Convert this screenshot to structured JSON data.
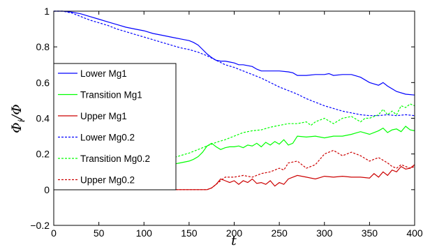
{
  "chart_data": {
    "type": "line",
    "title": "",
    "xlabel": "t",
    "ylabel": "Φ_i/Φ",
    "xlim": [
      0,
      400
    ],
    "ylim": [
      -0.2,
      1
    ],
    "grid": false,
    "legend_position": "center-left",
    "x_ticks": [
      "0",
      "50",
      "100",
      "150",
      "200",
      "250",
      "300",
      "350",
      "400"
    ],
    "y_ticks": [
      "−0.2",
      "0",
      "0.2",
      "0.4",
      "0.6",
      "0.8",
      "1"
    ],
    "series": [
      {
        "name": "Lower Mg1",
        "color": "#0000ff",
        "dash": "solid",
        "x": [
          0,
          10,
          20,
          30,
          40,
          50,
          60,
          70,
          80,
          90,
          100,
          110,
          120,
          130,
          140,
          150,
          155,
          160,
          165,
          170,
          175,
          180,
          185,
          190,
          195,
          200,
          205,
          210,
          220,
          225,
          230,
          240,
          250,
          260,
          265,
          270,
          280,
          290,
          300,
          305,
          310,
          320,
          330,
          340,
          350,
          360,
          365,
          370,
          380,
          390,
          400
        ],
        "y": [
          1.0,
          1.0,
          0.995,
          0.985,
          0.97,
          0.955,
          0.94,
          0.925,
          0.91,
          0.9,
          0.89,
          0.875,
          0.865,
          0.855,
          0.845,
          0.835,
          0.825,
          0.81,
          0.785,
          0.76,
          0.74,
          0.725,
          0.72,
          0.72,
          0.715,
          0.71,
          0.7,
          0.7,
          0.69,
          0.675,
          0.665,
          0.665,
          0.665,
          0.66,
          0.655,
          0.64,
          0.64,
          0.645,
          0.645,
          0.65,
          0.64,
          0.645,
          0.645,
          0.63,
          0.6,
          0.585,
          0.6,
          0.58,
          0.55,
          0.535,
          0.53
        ]
      },
      {
        "name": "Transition Mg1",
        "color": "#00ff00",
        "dash": "solid",
        "x": [
          0,
          10,
          20,
          30,
          40,
          50,
          60,
          70,
          80,
          90,
          100,
          110,
          120,
          130,
          140,
          150,
          155,
          160,
          165,
          170,
          175,
          180,
          185,
          190,
          195,
          200,
          205,
          210,
          215,
          220,
          225,
          230,
          235,
          240,
          245,
          250,
          255,
          260,
          265,
          270,
          280,
          290,
          300,
          310,
          320,
          330,
          340,
          350,
          360,
          365,
          370,
          375,
          380,
          385,
          390,
          395,
          400
        ],
        "y": [
          0.0,
          0.0,
          0.005,
          0.015,
          0.03,
          0.045,
          0.06,
          0.075,
          0.09,
          0.1,
          0.11,
          0.12,
          0.13,
          0.14,
          0.15,
          0.16,
          0.17,
          0.185,
          0.21,
          0.245,
          0.26,
          0.24,
          0.225,
          0.235,
          0.24,
          0.24,
          0.245,
          0.235,
          0.25,
          0.245,
          0.26,
          0.24,
          0.265,
          0.25,
          0.27,
          0.255,
          0.28,
          0.25,
          0.26,
          0.3,
          0.295,
          0.3,
          0.29,
          0.3,
          0.3,
          0.31,
          0.325,
          0.31,
          0.33,
          0.345,
          0.32,
          0.335,
          0.34,
          0.325,
          0.355,
          0.335,
          0.33
        ]
      },
      {
        "name": "Upper Mg1",
        "color": "#cc0000",
        "dash": "solid",
        "x": [
          0,
          50,
          100,
          150,
          170,
          175,
          180,
          185,
          190,
          195,
          200,
          205,
          210,
          215,
          220,
          225,
          230,
          235,
          240,
          245,
          250,
          255,
          260,
          265,
          270,
          280,
          290,
          300,
          310,
          320,
          330,
          340,
          350,
          355,
          360,
          365,
          370,
          375,
          380,
          385,
          390,
          395,
          400
        ],
        "y": [
          0.0,
          0.0,
          0.0,
          0.0,
          0.0,
          0.01,
          0.03,
          0.06,
          0.05,
          0.04,
          0.05,
          0.03,
          0.05,
          0.04,
          0.06,
          0.035,
          0.04,
          0.03,
          0.05,
          0.02,
          0.04,
          0.03,
          0.06,
          0.07,
          0.08,
          0.07,
          0.06,
          0.075,
          0.07,
          0.075,
          0.07,
          0.07,
          0.065,
          0.09,
          0.07,
          0.1,
          0.08,
          0.11,
          0.1,
          0.13,
          0.115,
          0.12,
          0.14
        ]
      },
      {
        "name": "Lower Mg0.2",
        "color": "#0000ff",
        "dash": "dotted",
        "x": [
          0,
          10,
          20,
          30,
          40,
          50,
          60,
          70,
          80,
          90,
          100,
          110,
          120,
          130,
          140,
          150,
          160,
          170,
          180,
          190,
          200,
          210,
          220,
          230,
          240,
          250,
          260,
          270,
          280,
          290,
          300,
          310,
          320,
          330,
          340,
          350,
          360,
          370,
          380,
          390,
          400
        ],
        "y": [
          1.0,
          1.0,
          0.99,
          0.97,
          0.95,
          0.935,
          0.92,
          0.9,
          0.885,
          0.87,
          0.855,
          0.84,
          0.825,
          0.81,
          0.795,
          0.785,
          0.77,
          0.75,
          0.725,
          0.7,
          0.685,
          0.665,
          0.645,
          0.625,
          0.6,
          0.575,
          0.555,
          0.535,
          0.51,
          0.49,
          0.47,
          0.455,
          0.44,
          0.43,
          0.42,
          0.415,
          0.415,
          0.42,
          0.415,
          0.42,
          0.415
        ]
      },
      {
        "name": "Transition Mg0.2",
        "color": "#00ff00",
        "dash": "dotted",
        "x": [
          0,
          10,
          20,
          30,
          40,
          50,
          60,
          70,
          80,
          90,
          100,
          110,
          120,
          130,
          140,
          150,
          160,
          170,
          180,
          190,
          200,
          210,
          220,
          230,
          240,
          250,
          260,
          270,
          280,
          285,
          290,
          300,
          310,
          320,
          330,
          340,
          345,
          350,
          360,
          365,
          370,
          375,
          380,
          385,
          390,
          395,
          400
        ],
        "y": [
          0.0,
          0.0,
          0.01,
          0.025,
          0.04,
          0.055,
          0.07,
          0.085,
          0.1,
          0.115,
          0.13,
          0.145,
          0.16,
          0.175,
          0.19,
          0.205,
          0.225,
          0.245,
          0.265,
          0.28,
          0.3,
          0.32,
          0.33,
          0.335,
          0.35,
          0.36,
          0.37,
          0.37,
          0.38,
          0.36,
          0.38,
          0.4,
          0.37,
          0.4,
          0.41,
          0.38,
          0.4,
          0.4,
          0.42,
          0.45,
          0.42,
          0.44,
          0.42,
          0.47,
          0.46,
          0.48,
          0.47
        ]
      },
      {
        "name": "Upper Mg0.2",
        "color": "#cc0000",
        "dash": "dotted",
        "x": [
          0,
          50,
          100,
          150,
          170,
          175,
          180,
          185,
          190,
          200,
          210,
          220,
          230,
          240,
          245,
          250,
          255,
          260,
          270,
          280,
          290,
          300,
          310,
          320,
          330,
          340,
          350,
          360,
          370,
          375,
          380,
          385,
          390,
          395,
          400
        ],
        "y": [
          0.0,
          0.0,
          0.0,
          0.0,
          0.0,
          0.01,
          0.03,
          0.05,
          0.07,
          0.07,
          0.08,
          0.07,
          0.09,
          0.1,
          0.11,
          0.12,
          0.11,
          0.15,
          0.16,
          0.12,
          0.14,
          0.2,
          0.22,
          0.19,
          0.21,
          0.19,
          0.16,
          0.18,
          0.15,
          0.13,
          0.12,
          0.14,
          0.13,
          0.12,
          0.13
        ]
      }
    ]
  }
}
